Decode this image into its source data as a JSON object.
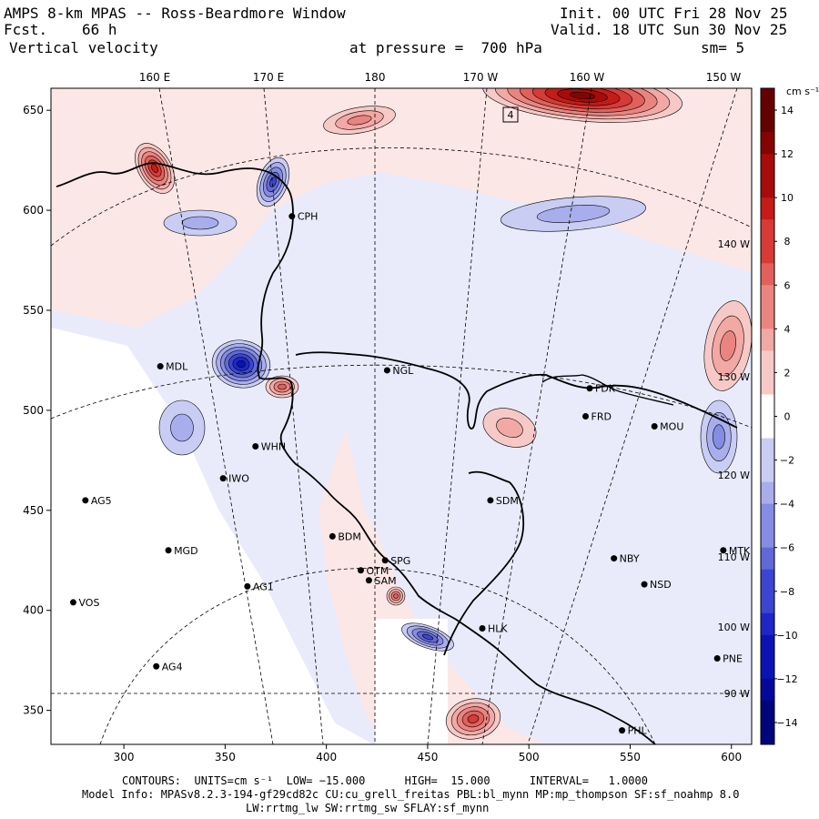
{
  "header": {
    "title": "AMPS 8-km MPAS -- Ross-Beardmore Window",
    "fcst_label": "Fcst.",
    "fcst_value": "66 h",
    "field": "Vertical velocity",
    "init": "Init. 00 UTC Fri 28 Nov 25",
    "valid": "Valid. 18 UTC Sun 30 Nov 25",
    "pressure": "at pressure =  700 hPa",
    "smoothing": "sm= 5"
  },
  "footer": {
    "contours": "CONTOURS:  UNITS=cm s⁻¹  LOW= −15.000      HIGH=  15.000      INTERVAL=   1.0000",
    "model_info": "Model Info: MPASv8.2.3-194-gf29cd82c CU:cu_grell_freitas PBL:bl_mynn MP:mp_thompson SF:sf_noahmp 8.0",
    "model_info2": "LW:rrtmg_lw SW:rrtmg_sw SFLAY:sf_mynn"
  },
  "map": {
    "x_ticks": [
      "300",
      "350",
      "400",
      "450",
      "500",
      "550",
      "600"
    ],
    "x_tick_values": [
      300,
      350,
      400,
      450,
      500,
      550,
      600
    ],
    "y_ticks": [
      "650",
      "600",
      "550",
      "500",
      "450",
      "400",
      "350"
    ],
    "y_tick_values": [
      650,
      600,
      550,
      500,
      450,
      400,
      350
    ],
    "x_range": [
      264,
      610
    ],
    "y_range": [
      333,
      661
    ],
    "lon_labels": [
      "160 E",
      "170 E",
      "180",
      "170 W",
      "160 W",
      "150 W"
    ],
    "lat_lon_right_labels": [
      "140 W",
      "130 W",
      "120 W",
      "110 W",
      "100 W",
      "90 W"
    ],
    "box_label": "4",
    "stations": [
      {
        "name": "CPH",
        "x": 383,
        "y": 597
      },
      {
        "name": "NGL",
        "x": 430,
        "y": 520
      },
      {
        "name": "MDL",
        "x": 318,
        "y": 522
      },
      {
        "name": "FDK",
        "x": 530,
        "y": 511
      },
      {
        "name": "FRD",
        "x": 528,
        "y": 497
      },
      {
        "name": "MOU",
        "x": 562,
        "y": 492
      },
      {
        "name": "WHN",
        "x": 365,
        "y": 482
      },
      {
        "name": "IWO",
        "x": 349,
        "y": 466
      },
      {
        "name": "SDM",
        "x": 481,
        "y": 455
      },
      {
        "name": "AG5",
        "x": 281,
        "y": 455
      },
      {
        "name": "BDM",
        "x": 403,
        "y": 437
      },
      {
        "name": "MGD",
        "x": 322,
        "y": 430
      },
      {
        "name": "NBY",
        "x": 542,
        "y": 426
      },
      {
        "name": "MTK",
        "x": 596,
        "y": 430
      },
      {
        "name": "SPG",
        "x": 429,
        "y": 425
      },
      {
        "name": "OTM",
        "x": 417,
        "y": 420
      },
      {
        "name": "SAM",
        "x": 421,
        "y": 415
      },
      {
        "name": "AG1",
        "x": 361,
        "y": 412
      },
      {
        "name": "NSD",
        "x": 557,
        "y": 413
      },
      {
        "name": "VOS",
        "x": 275,
        "y": 404
      },
      {
        "name": "HLK",
        "x": 477,
        "y": 391
      },
      {
        "name": "AG4",
        "x": 316,
        "y": 372
      },
      {
        "name": "PNE",
        "x": 593,
        "y": 376
      },
      {
        "name": "PHL",
        "x": 546,
        "y": 340
      }
    ]
  },
  "colorbar": {
    "units": "cm s⁻¹",
    "labels": [
      "14",
      "12",
      "10",
      "8",
      "6",
      "4",
      "2",
      "0",
      "−2",
      "−4",
      "−6",
      "−8",
      "−10",
      "−12",
      "−14"
    ],
    "label_values": [
      14,
      12,
      10,
      8,
      6,
      4,
      2,
      0,
      -2,
      -4,
      -6,
      -8,
      -10,
      -12,
      -14
    ],
    "range": [
      -15,
      15
    ],
    "colors_pos": [
      "#fbe7e6",
      "#f7c9c6",
      "#f2a8a4",
      "#ea8480",
      "#e2605b",
      "#d63b36",
      "#c41c18",
      "#a70c0a",
      "#850303",
      "#650000"
    ],
    "colors_neg": [
      "#e7e9fb",
      "#c9cdf4",
      "#a8aeec",
      "#858ce3",
      "#6169d9",
      "#3c45cf",
      "#1e27c6",
      "#0b12b4",
      "#04099a",
      "#00057c"
    ],
    "colors": {
      "land_white": "#ffffff",
      "pink_bg": "#fbe7e6",
      "lavender_bg": "#e9ebfb",
      "contour": "#000000"
    }
  }
}
